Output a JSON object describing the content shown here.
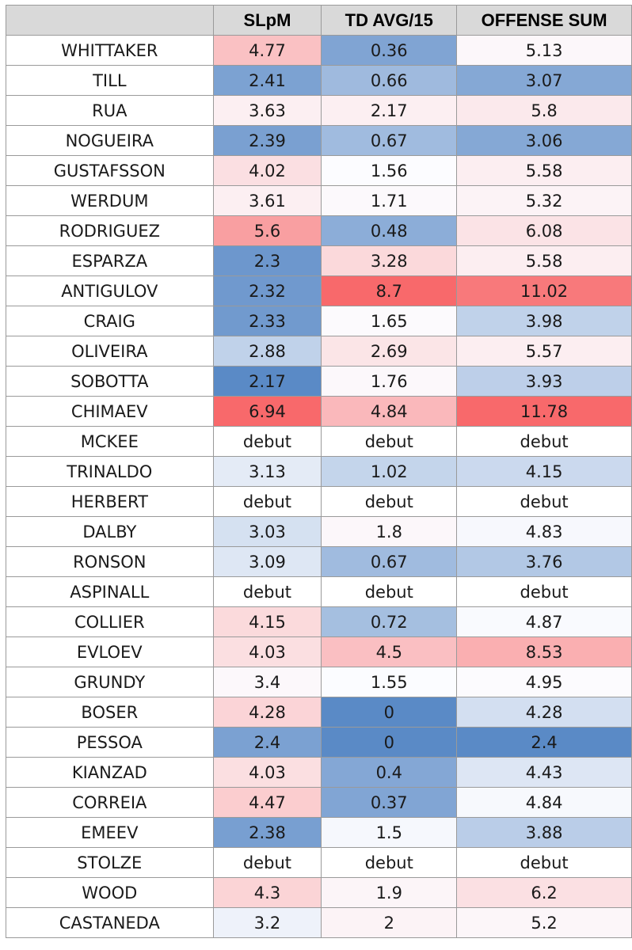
{
  "table": {
    "columns": [
      "",
      "SLpM",
      "TD AVG/15",
      "OFFENSE SUM"
    ],
    "rows": [
      {
        "name": "WHITTAKER",
        "slpm": "4.77",
        "td": "0.36",
        "sum": "5.13"
      },
      {
        "name": "TILL",
        "slpm": "2.41",
        "td": "0.66",
        "sum": "3.07"
      },
      {
        "name": "RUA",
        "slpm": "3.63",
        "td": "2.17",
        "sum": "5.8"
      },
      {
        "name": "NOGUEIRA",
        "slpm": "2.39",
        "td": "0.67",
        "sum": "3.06"
      },
      {
        "name": "GUSTAFSSON",
        "slpm": "4.02",
        "td": "1.56",
        "sum": "5.58"
      },
      {
        "name": "WERDUM",
        "slpm": "3.61",
        "td": "1.71",
        "sum": "5.32"
      },
      {
        "name": "RODRIGUEZ",
        "slpm": "5.6",
        "td": "0.48",
        "sum": "6.08"
      },
      {
        "name": "ESPARZA",
        "slpm": "2.3",
        "td": "3.28",
        "sum": "5.58"
      },
      {
        "name": "ANTIGULOV",
        "slpm": "2.32",
        "td": "8.7",
        "sum": "11.02"
      },
      {
        "name": "CRAIG",
        "slpm": "2.33",
        "td": "1.65",
        "sum": "3.98"
      },
      {
        "name": "OLIVEIRA",
        "slpm": "2.88",
        "td": "2.69",
        "sum": "5.57"
      },
      {
        "name": "SOBOTTA",
        "slpm": "2.17",
        "td": "1.76",
        "sum": "3.93"
      },
      {
        "name": "CHIMAEV",
        "slpm": "6.94",
        "td": "4.84",
        "sum": "11.78"
      },
      {
        "name": "MCKEE",
        "slpm": "debut",
        "td": "debut",
        "sum": "debut"
      },
      {
        "name": "TRINALDO",
        "slpm": "3.13",
        "td": "1.02",
        "sum": "4.15"
      },
      {
        "name": "HERBERT",
        "slpm": "debut",
        "td": "debut",
        "sum": "debut"
      },
      {
        "name": "DALBY",
        "slpm": "3.03",
        "td": "1.8",
        "sum": "4.83"
      },
      {
        "name": "RONSON",
        "slpm": "3.09",
        "td": "0.67",
        "sum": "3.76"
      },
      {
        "name": "ASPINALL",
        "slpm": "debut",
        "td": "debut",
        "sum": "debut"
      },
      {
        "name": "COLLIER",
        "slpm": "4.15",
        "td": "0.72",
        "sum": "4.87"
      },
      {
        "name": "EVLOEV",
        "slpm": "4.03",
        "td": "4.5",
        "sum": "8.53"
      },
      {
        "name": "GRUNDY",
        "slpm": "3.4",
        "td": "1.55",
        "sum": "4.95"
      },
      {
        "name": "BOSER",
        "slpm": "4.28",
        "td": "0",
        "sum": "4.28"
      },
      {
        "name": "PESSOA",
        "slpm": "2.4",
        "td": "0",
        "sum": "2.4"
      },
      {
        "name": "KIANZAD",
        "slpm": "4.03",
        "td": "0.4",
        "sum": "4.43"
      },
      {
        "name": "CORREIA",
        "slpm": "4.47",
        "td": "0.37",
        "sum": "4.84"
      },
      {
        "name": "EMEEV",
        "slpm": "2.38",
        "td": "1.5",
        "sum": "3.88"
      },
      {
        "name": "STOLZE",
        "slpm": "debut",
        "td": "debut",
        "sum": "debut"
      },
      {
        "name": "WOOD",
        "slpm": "4.3",
        "td": "1.9",
        "sum": "6.2"
      },
      {
        "name": "CASTANEDA",
        "slpm": "3.2",
        "td": "2",
        "sum": "5.2"
      }
    ]
  },
  "colors": {
    "scale_low": "#5a8ac6",
    "scale_mid": "#fcfcff",
    "scale_high": "#f8696b",
    "header_bg": "#d9d9d9",
    "grid": "#9a9a9a"
  }
}
